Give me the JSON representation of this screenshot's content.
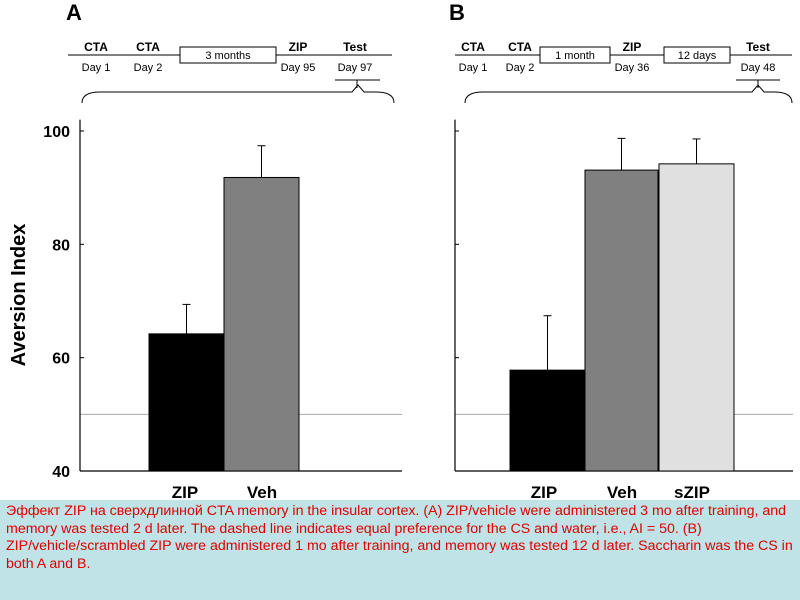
{
  "panels": {
    "a": {
      "letter": "A",
      "timeline": [
        {
          "event": "CTA",
          "day": "Day 1"
        },
        {
          "event": "CTA",
          "day": "Day 2"
        },
        {
          "interval": "3 months"
        },
        {
          "event": "ZIP",
          "day": "Day 95"
        },
        {
          "event": "Test",
          "day": "Day 97"
        }
      ]
    },
    "b": {
      "letter": "B",
      "timeline": [
        {
          "event": "CTA",
          "day": "Day 1"
        },
        {
          "event": "CTA",
          "day": "Day 2"
        },
        {
          "interval": "1 month"
        },
        {
          "event": "ZIP",
          "day": "Day 36"
        },
        {
          "interval": "12 days"
        },
        {
          "event": "Test",
          "day": "Day 48"
        }
      ]
    }
  },
  "chart_data": [
    {
      "type": "bar",
      "panel": "A",
      "ylabel": "Aversion Index",
      "ylim": [
        40,
        102
      ],
      "yticks": [
        40,
        60,
        80,
        100
      ],
      "reference_line": 50,
      "categories": [
        "ZIP",
        "Veh"
      ],
      "values": [
        64.2,
        91.8
      ],
      "errors": [
        5.2,
        5.6
      ],
      "colors": [
        "#000000",
        "#808080"
      ]
    },
    {
      "type": "bar",
      "panel": "B",
      "ylabel": "",
      "ylim": [
        40,
        102
      ],
      "yticks": [
        40,
        60,
        80,
        100
      ],
      "reference_line": 50,
      "categories": [
        "ZIP",
        "Veh",
        "sZIP"
      ],
      "values": [
        57.8,
        93.1,
        94.2
      ],
      "errors": [
        9.6,
        5.6,
        4.4
      ],
      "colors": [
        "#000000",
        "#808080",
        "#e0e0e0"
      ]
    }
  ],
  "caption": "Эффект ZIP на сверхдлинной  CTA memory in the insular  cortex. (A) ZIP/vehicle were administered 3 mo after training, and memory was tested 2 d later. The dashed line indicates equal preference for the CS and water, i.e., AI = 50. (B) ZIP/vehicle/scrambled  ZIP were administered  1 mo after training, and memory was tested 12 d later. Saccharin was the CS in both A and B."
}
